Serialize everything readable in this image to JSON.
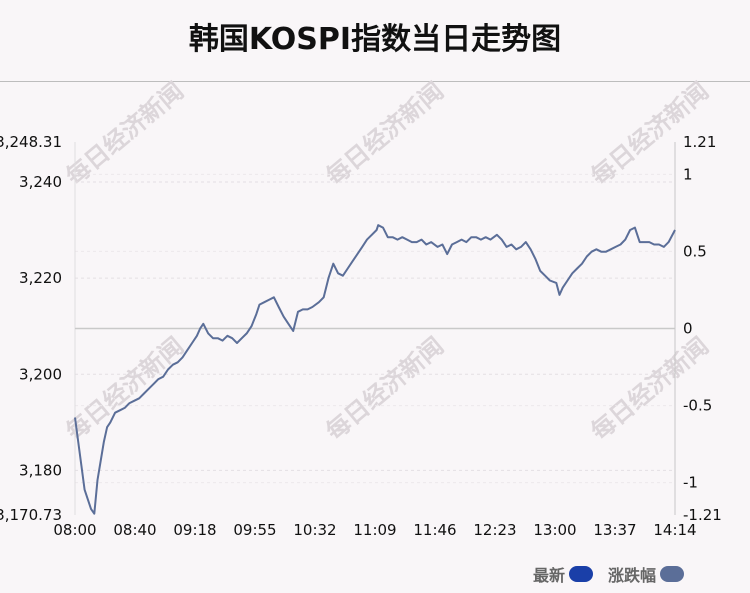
{
  "title": "韩国KOSPI指数当日走势图",
  "watermark": "每日经济新闻",
  "legend": [
    {
      "label": "最新",
      "color": "#1a3fa8"
    },
    {
      "label": "涨跌幅",
      "color": "#5b6e98"
    }
  ],
  "chart_data": {
    "type": "line",
    "title": "韩国KOSPI指数当日走势图",
    "line_color": "#5b6e98",
    "zero_line_color": "#c9c9c9",
    "y_left": {
      "min": 3170.73,
      "max": 3248.31,
      "ticks": [
        {
          "value": 3248.31,
          "label": "3,248.31"
        },
        {
          "value": 3240,
          "label": "3,240"
        },
        {
          "value": 3220,
          "label": "3,220"
        },
        {
          "value": 3200,
          "label": "3,200"
        },
        {
          "value": 3180,
          "label": "3,180"
        },
        {
          "value": 3170.73,
          "label": "3,170.73"
        }
      ]
    },
    "y_right": {
      "min": -1.21,
      "max": 1.21,
      "zero": 0,
      "ticks": [
        {
          "value": 1.21,
          "label": "1.21"
        },
        {
          "value": 1,
          "label": "1"
        },
        {
          "value": 0.5,
          "label": "0.5"
        },
        {
          "value": 0,
          "label": "0"
        },
        {
          "value": -0.5,
          "label": "-0.5"
        },
        {
          "value": -1,
          "label": "-1"
        },
        {
          "value": -1.21,
          "label": "-1.21"
        }
      ]
    },
    "x": {
      "start": "08:00",
      "end": "14:14",
      "labels": [
        "08:00",
        "08:40",
        "09:18",
        "09:55",
        "10:32",
        "11:09",
        "11:46",
        "12:23",
        "13:00",
        "13:37",
        "14:14"
      ]
    },
    "series": [
      {
        "points": [
          [
            "08:00",
            3191.0
          ],
          [
            "08:02",
            3186.0
          ],
          [
            "08:04",
            3181.0
          ],
          [
            "08:06",
            3176.0
          ],
          [
            "08:08",
            3174.0
          ],
          [
            "08:10",
            3172.0
          ],
          [
            "08:12",
            3171.0
          ],
          [
            "08:14",
            3178.0
          ],
          [
            "08:16",
            3182.0
          ],
          [
            "08:18",
            3186.0
          ],
          [
            "08:20",
            3189.0
          ],
          [
            "08:22",
            3190.0
          ],
          [
            "08:25",
            3192.0
          ],
          [
            "08:28",
            3192.5
          ],
          [
            "08:31",
            3193.0
          ],
          [
            "08:34",
            3194.0
          ],
          [
            "08:37",
            3194.5
          ],
          [
            "08:40",
            3195.0
          ],
          [
            "08:43",
            3196.0
          ],
          [
            "08:46",
            3197.0
          ],
          [
            "08:49",
            3198.0
          ],
          [
            "08:52",
            3199.0
          ],
          [
            "08:55",
            3199.5
          ],
          [
            "08:58",
            3201.0
          ],
          [
            "09:01",
            3202.0
          ],
          [
            "09:04",
            3202.5
          ],
          [
            "09:07",
            3203.5
          ],
          [
            "09:10",
            3205.0
          ],
          [
            "09:13",
            3206.5
          ],
          [
            "09:16",
            3208.0
          ],
          [
            "09:18",
            3209.5
          ],
          [
            "09:20",
            3210.5
          ],
          [
            "09:23",
            3208.5
          ],
          [
            "09:26",
            3207.5
          ],
          [
            "09:29",
            3207.5
          ],
          [
            "09:32",
            3207.0
          ],
          [
            "09:35",
            3208.0
          ],
          [
            "09:38",
            3207.5
          ],
          [
            "09:41",
            3206.5
          ],
          [
            "09:44",
            3207.5
          ],
          [
            "09:47",
            3208.5
          ],
          [
            "09:50",
            3210.0
          ],
          [
            "09:53",
            3212.5
          ],
          [
            "09:55",
            3214.5
          ],
          [
            "09:58",
            3215.0
          ],
          [
            "10:01",
            3215.5
          ],
          [
            "10:04",
            3216.0
          ],
          [
            "10:07",
            3214.0
          ],
          [
            "10:10",
            3212.0
          ],
          [
            "10:13",
            3210.5
          ],
          [
            "10:16",
            3209.0
          ],
          [
            "10:19",
            3213.0
          ],
          [
            "10:22",
            3213.5
          ],
          [
            "10:25",
            3213.5
          ],
          [
            "10:28",
            3214.0
          ],
          [
            "10:32",
            3215.0
          ],
          [
            "10:35",
            3216.0
          ],
          [
            "10:38",
            3220.0
          ],
          [
            "10:41",
            3223.0
          ],
          [
            "10:44",
            3221.0
          ],
          [
            "10:47",
            3220.5
          ],
          [
            "10:50",
            3222.0
          ],
          [
            "10:53",
            3223.5
          ],
          [
            "10:56",
            3225.0
          ],
          [
            "10:59",
            3226.5
          ],
          [
            "11:02",
            3228.0
          ],
          [
            "11:05",
            3229.0
          ],
          [
            "11:08",
            3230.0
          ],
          [
            "11:09",
            3231.0
          ],
          [
            "11:12",
            3230.5
          ],
          [
            "11:15",
            3228.5
          ],
          [
            "11:18",
            3228.5
          ],
          [
            "11:21",
            3228.0
          ],
          [
            "11:24",
            3228.5
          ],
          [
            "11:27",
            3228.0
          ],
          [
            "11:30",
            3227.5
          ],
          [
            "11:33",
            3227.5
          ],
          [
            "11:36",
            3228.0
          ],
          [
            "11:39",
            3227.0
          ],
          [
            "11:42",
            3227.5
          ],
          [
            "11:46",
            3226.5
          ],
          [
            "11:49",
            3227.0
          ],
          [
            "11:52",
            3225.0
          ],
          [
            "11:55",
            3227.0
          ],
          [
            "11:58",
            3227.5
          ],
          [
            "12:01",
            3228.0
          ],
          [
            "12:04",
            3227.5
          ],
          [
            "12:07",
            3228.5
          ],
          [
            "12:10",
            3228.5
          ],
          [
            "12:13",
            3228.0
          ],
          [
            "12:16",
            3228.5
          ],
          [
            "12:19",
            3228.0
          ],
          [
            "12:23",
            3229.0
          ],
          [
            "12:26",
            3228.0
          ],
          [
            "12:29",
            3226.5
          ],
          [
            "12:32",
            3227.0
          ],
          [
            "12:35",
            3226.0
          ],
          [
            "12:38",
            3226.5
          ],
          [
            "12:41",
            3227.5
          ],
          [
            "12:44",
            3226.0
          ],
          [
            "12:47",
            3224.0
          ],
          [
            "12:50",
            3221.5
          ],
          [
            "12:53",
            3220.5
          ],
          [
            "12:56",
            3219.5
          ],
          [
            "13:00",
            3219.0
          ],
          [
            "13:02",
            3216.5
          ],
          [
            "13:04",
            3218.0
          ],
          [
            "13:07",
            3219.5
          ],
          [
            "13:10",
            3221.0
          ],
          [
            "13:13",
            3222.0
          ],
          [
            "13:16",
            3223.0
          ],
          [
            "13:19",
            3224.5
          ],
          [
            "13:22",
            3225.5
          ],
          [
            "13:25",
            3226.0
          ],
          [
            "13:28",
            3225.5
          ],
          [
            "13:31",
            3225.5
          ],
          [
            "13:34",
            3226.0
          ],
          [
            "13:37",
            3226.5
          ],
          [
            "13:40",
            3227.0
          ],
          [
            "13:43",
            3228.0
          ],
          [
            "13:46",
            3230.0
          ],
          [
            "13:49",
            3230.5
          ],
          [
            "13:52",
            3227.5
          ],
          [
            "13:55",
            3227.5
          ],
          [
            "13:58",
            3227.5
          ],
          [
            "14:01",
            3227.0
          ],
          [
            "14:04",
            3227.0
          ],
          [
            "14:07",
            3226.5
          ],
          [
            "14:10",
            3227.5
          ],
          [
            "14:14",
            3230.0
          ]
        ]
      }
    ]
  }
}
